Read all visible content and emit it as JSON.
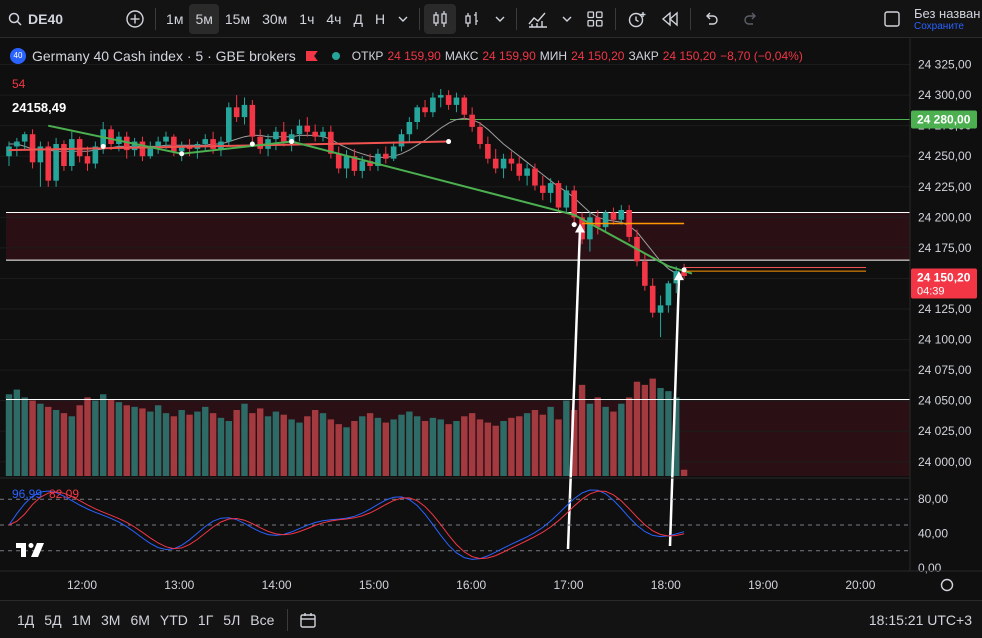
{
  "toolbar": {
    "symbol": "DE40",
    "intervals": [
      "1м",
      "5м",
      "15м",
      "30м",
      "1ч",
      "4ч",
      "Д",
      "Н"
    ],
    "active_interval": "5м",
    "layout_name": "Без назван",
    "save_state": "Сохраните"
  },
  "legend": {
    "badge": "40",
    "title": "Germany 40 Cash index · 5 · GBE brokers",
    "open_label": "ОТКР",
    "open_value": "24 159,90",
    "high_label": "МАКС",
    "high_value": "24 159,90",
    "low_label": "МИН",
    "low_value": "24 150,20",
    "close_label": "ЗАКР",
    "close_value": "24 150,20",
    "change_value": "−8,70 (−0,04%)",
    "sub_value": "54",
    "price_marker": "24158,49"
  },
  "colors": {
    "up": "#26a69a",
    "down": "#f23645",
    "green_line": "#4caf50",
    "red_line": "#ef5350",
    "price_badge": "#f23645",
    "level_badge": "#4caf50",
    "orange": "#ff9800"
  },
  "bottom": {
    "ranges": [
      "1Д",
      "5Д",
      "1М",
      "3М",
      "6М",
      "YTD",
      "1Г",
      "5Л",
      "Все"
    ],
    "clock": "18:15:21 UTC+3"
  },
  "chart_data": [
    {
      "type": "candlestick",
      "title": "Germany 40 Cash index · 5 · GBE brokers",
      "x_ticks": [
        "12:00",
        "13:00",
        "14:00",
        "15:00",
        "16:00",
        "17:00",
        "18:00",
        "19:00",
        "20:00"
      ],
      "y_ticks": [
        "24 325,00",
        "24 300,00",
        "24 275,00",
        "24 250,00",
        "24 225,00",
        "24 200,00",
        "24 175,00",
        "24 150,00",
        "24 125,00",
        "24 100,00",
        "24 075,00",
        "24 050,00",
        "24 025,00",
        "24 000,00"
      ],
      "ylim": [
        23990,
        24332
      ],
      "current_price": "24 150,20",
      "current_price_time": "04:39",
      "level_label": "24 280,00",
      "level_value": 24280,
      "horizontal_lines": [
        24204,
        24165,
        24051
      ],
      "candles": [
        [
          24250,
          24262,
          24242,
          24258
        ],
        [
          24258,
          24265,
          24250,
          24262
        ],
        [
          24262,
          24270,
          24255,
          24268
        ],
        [
          24268,
          24272,
          24240,
          24245
        ],
        [
          24245,
          24262,
          24225,
          24258
        ],
        [
          24258,
          24262,
          24225,
          24230
        ],
        [
          24230,
          24265,
          24225,
          24260
        ],
        [
          24260,
          24263,
          24238,
          24242
        ],
        [
          24242,
          24270,
          24238,
          24264
        ],
        [
          24264,
          24266,
          24245,
          24250
        ],
        [
          24250,
          24258,
          24238,
          24244
        ],
        [
          24244,
          24262,
          24240,
          24258
        ],
        [
          24258,
          24278,
          24252,
          24272
        ],
        [
          24272,
          24275,
          24255,
          24260
        ],
        [
          24260,
          24270,
          24254,
          24266
        ],
        [
          24266,
          24270,
          24248,
          24255
        ],
        [
          24255,
          24265,
          24250,
          24262
        ],
        [
          24262,
          24266,
          24246,
          24250
        ],
        [
          24250,
          24262,
          24248,
          24258
        ],
        [
          24258,
          24266,
          24252,
          24262
        ],
        [
          24262,
          24270,
          24256,
          24266
        ],
        [
          24266,
          24268,
          24250,
          24254
        ],
        [
          24254,
          24262,
          24246,
          24258
        ],
        [
          24258,
          24264,
          24250,
          24256
        ],
        [
          24256,
          24262,
          24248,
          24260
        ],
        [
          24260,
          24268,
          24255,
          24264
        ],
        [
          24264,
          24270,
          24252,
          24256
        ],
        [
          24256,
          24266,
          24250,
          24262
        ],
        [
          24262,
          24294,
          24258,
          24290
        ],
        [
          24290,
          24300,
          24278,
          24282
        ],
        [
          24282,
          24298,
          24276,
          24292
        ],
        [
          24292,
          24296,
          24262,
          24266
        ],
        [
          24266,
          24272,
          24252,
          24256
        ],
        [
          24256,
          24268,
          24250,
          24264
        ],
        [
          24264,
          24274,
          24255,
          24270
        ],
        [
          24270,
          24278,
          24258,
          24262
        ],
        [
          24262,
          24272,
          24254,
          24268
        ],
        [
          24268,
          24280,
          24262,
          24275
        ],
        [
          24275,
          24282,
          24266,
          24270
        ],
        [
          24270,
          24276,
          24262,
          24266
        ],
        [
          24266,
          24274,
          24262,
          24270
        ],
        [
          24270,
          24275,
          24248,
          24252
        ],
        [
          24252,
          24258,
          24236,
          24240
        ],
        [
          24240,
          24255,
          24232,
          24250
        ],
        [
          24250,
          24256,
          24234,
          24238
        ],
        [
          24238,
          24250,
          24232,
          24246
        ],
        [
          24246,
          24252,
          24238,
          24242
        ],
        [
          24242,
          24256,
          24238,
          24252
        ],
        [
          24252,
          24258,
          24244,
          24248
        ],
        [
          24248,
          24262,
          24246,
          24258
        ],
        [
          24258,
          24272,
          24254,
          24268
        ],
        [
          24268,
          24282,
          24262,
          24278
        ],
        [
          24278,
          24292,
          24272,
          24290
        ],
        [
          24290,
          24296,
          24282,
          24286
        ],
        [
          24286,
          24302,
          24282,
          24298
        ],
        [
          24298,
          24305,
          24290,
          24300
        ],
        [
          24300,
          24304,
          24288,
          24292
        ],
        [
          24292,
          24302,
          24286,
          24298
        ],
        [
          24298,
          24300,
          24280,
          24284
        ],
        [
          24284,
          24290,
          24270,
          24274
        ],
        [
          24274,
          24278,
          24256,
          24260
        ],
        [
          24260,
          24266,
          24244,
          24248
        ],
        [
          24248,
          24256,
          24236,
          24240
        ],
        [
          24240,
          24252,
          24232,
          24248
        ],
        [
          24248,
          24254,
          24238,
          24244
        ],
        [
          24244,
          24250,
          24230,
          24234
        ],
        [
          24234,
          24244,
          24226,
          24240
        ],
        [
          24240,
          24244,
          24222,
          24226
        ],
        [
          24226,
          24234,
          24214,
          24220
        ],
        [
          24220,
          24232,
          24212,
          24228
        ],
        [
          24228,
          24230,
          24204,
          24208
        ],
        [
          24208,
          24226,
          24204,
          24222
        ],
        [
          24222,
          24226,
          24196,
          24200
        ],
        [
          24200,
          24204,
          24178,
          24182
        ],
        [
          24182,
          24204,
          24172,
          24200
        ],
        [
          24200,
          24206,
          24186,
          24192
        ],
        [
          24192,
          24206,
          24188,
          24204
        ],
        [
          24204,
          24208,
          24194,
          24198
        ],
        [
          24198,
          24210,
          24194,
          24206
        ],
        [
          24206,
          24210,
          24180,
          24184
        ],
        [
          24184,
          24190,
          24160,
          24164
        ],
        [
          24164,
          24170,
          24140,
          24144
        ],
        [
          24144,
          24150,
          24118,
          24122
        ],
        [
          24122,
          24136,
          24102,
          24128
        ],
        [
          24128,
          24148,
          24122,
          24146
        ],
        [
          24146,
          24160,
          24138,
          24156
        ],
        [
          24156,
          24162,
          24150,
          24152
        ]
      ],
      "ma_fast": [
        24260,
        24260,
        24258,
        24256,
        24256,
        24255,
        24254,
        24254,
        24254,
        24254,
        24254,
        24255,
        24256,
        24257,
        24258,
        24258,
        24258,
        24258,
        24258,
        24258,
        24259,
        24259,
        24259,
        24259,
        24259,
        24259,
        24260,
        24260,
        24262,
        24264,
        24266,
        24267,
        24267,
        24266,
        24266,
        24266,
        24266,
        24267,
        24267,
        24267,
        24266,
        24264,
        24260,
        24257,
        24254,
        24252,
        24250,
        24249,
        24249,
        24250,
        24252,
        24255,
        24259,
        24263,
        24268,
        24273,
        24277,
        24280,
        24281,
        24280,
        24277,
        24272,
        24266,
        24260,
        24255,
        24250,
        24245,
        24240,
        24235,
        24230,
        24225,
        24221,
        24216,
        24210,
        24204,
        24200,
        24198,
        24197,
        24196,
        24193,
        24188,
        24180,
        24172,
        24164,
        24158,
        24154,
        24153
      ],
      "volume": [
        52,
        55,
        50,
        48,
        46,
        44,
        42,
        40,
        38,
        45,
        50,
        48,
        52,
        49,
        47,
        45,
        44,
        43,
        41,
        45,
        40,
        38,
        42,
        39,
        41,
        44,
        40,
        37,
        35,
        42,
        46,
        40,
        43,
        38,
        41,
        39,
        36,
        34,
        38,
        42,
        40,
        36,
        33,
        31,
        35,
        38,
        40,
        37,
        34,
        36,
        39,
        41,
        38,
        35,
        37,
        36,
        33,
        35,
        38,
        40,
        36,
        34,
        32,
        35,
        37,
        38,
        40,
        42,
        39,
        44,
        36,
        48,
        42,
        58,
        46,
        50,
        44,
        41,
        46,
        50,
        60,
        58,
        62,
        56,
        54,
        50,
        4
      ],
      "volume_scale_max": 70,
      "stoch_k_label": "96,99",
      "stoch_d_label": "82,09",
      "stoch_ticks": [
        "80,00",
        "40,00",
        "0,00"
      ],
      "stoch_lim": [
        0,
        100
      ]
    }
  ]
}
